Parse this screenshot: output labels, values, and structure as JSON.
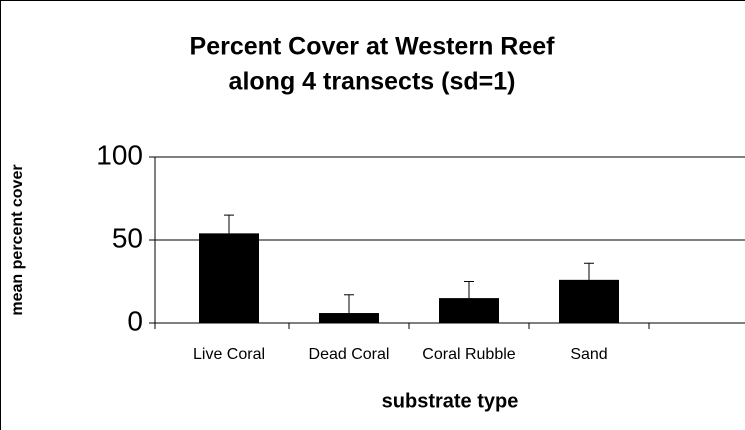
{
  "chart_data": {
    "type": "bar",
    "title": [
      "Percent Cover at Western Reef",
      "along 4 transects (sd=1)"
    ],
    "x_label": "substrate type",
    "y_label": "mean percent cover",
    "categories": [
      "Live Coral",
      "Dead Coral",
      "Coral Rubble",
      "Sand"
    ],
    "values": [
      54,
      6,
      15,
      26
    ],
    "errors": [
      11,
      11,
      10,
      10
    ],
    "color": "#000000",
    "ylim": [
      0,
      100
    ],
    "yticks": [
      0,
      50,
      100
    ],
    "grid": true
  }
}
